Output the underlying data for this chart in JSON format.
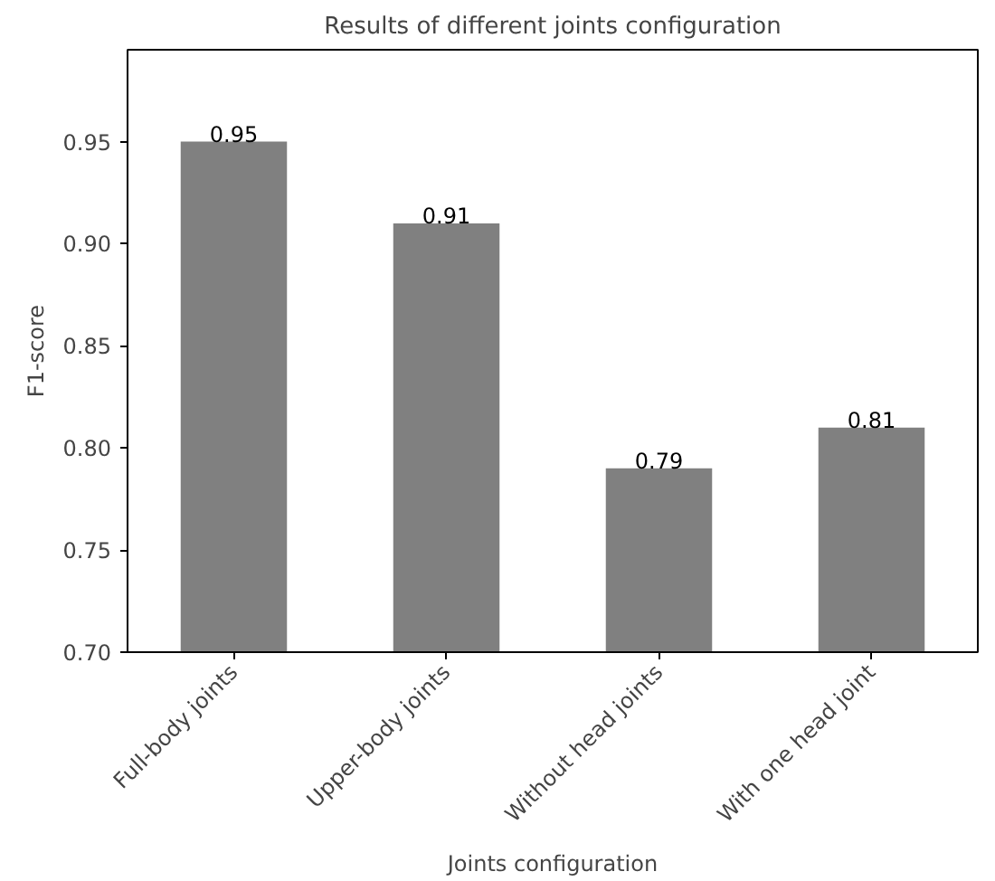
{
  "chart_data": {
    "type": "bar",
    "title": "Results of different joints configuration",
    "xlabel": "Joints configuration",
    "ylabel": "F1-score",
    "categories": [
      "Full-body joints",
      "Upper-body joints",
      "Without head joints",
      "With one head joint"
    ],
    "values": [
      0.95,
      0.91,
      0.79,
      0.81
    ],
    "color": "#808080",
    "ylim": [
      0.7,
      0.995
    ],
    "yticks": [
      {
        "value": 0.7,
        "label": "0.70"
      },
      {
        "value": 0.75,
        "label": "0.75"
      },
      {
        "value": 0.8,
        "label": "0.80"
      },
      {
        "value": 0.85,
        "label": "0.85"
      },
      {
        "value": 0.9,
        "label": "0.90"
      },
      {
        "value": 0.95,
        "label": "0.95"
      }
    ],
    "data_labels": true,
    "grid": false
  }
}
